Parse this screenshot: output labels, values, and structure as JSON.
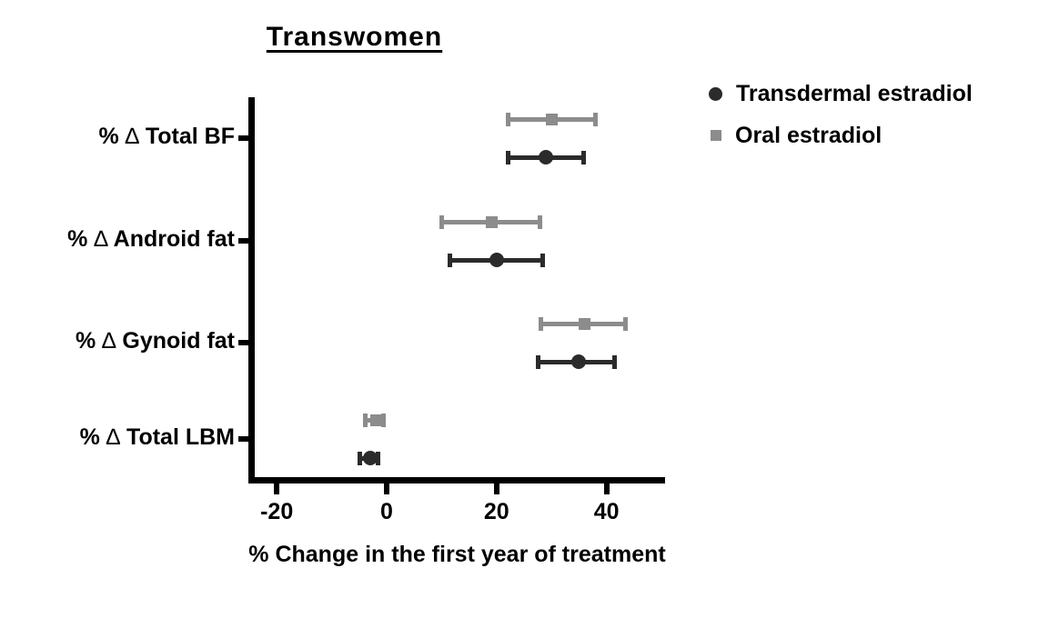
{
  "chart_data": {
    "type": "scatter",
    "title": "Transwomen",
    "xlabel": "% Change in the first year of treatment",
    "ylabel": "",
    "categories": [
      "% ∆ Total BF",
      "% ∆ Android fat",
      "% ∆ Gynoid fat",
      "% ∆ Total LBM"
    ],
    "x_ticks": [
      -20,
      0,
      20,
      40
    ],
    "xlim": [
      -25,
      50.5
    ],
    "grid": false,
    "legend_position": "top-right",
    "background": "#ffffff",
    "axis_color": "#000000",
    "text_color": "#000000",
    "series": [
      {
        "name": "Transdermal estradiol",
        "marker": "circle",
        "color": "#2b2b2b",
        "points": [
          {
            "category": "% ∆ Total BF",
            "value": 29,
            "low": 22,
            "high": 36
          },
          {
            "category": "% ∆ Android fat",
            "value": 20,
            "low": 11.5,
            "high": 28.5
          },
          {
            "category": "% ∆ Gynoid fat",
            "value": 35,
            "low": 27.5,
            "high": 41.5
          },
          {
            "category": "% ∆ Total LBM",
            "value": -3,
            "low": -5,
            "high": -1.5
          }
        ]
      },
      {
        "name": "Oral estradiol",
        "marker": "square",
        "color": "#8c8c8c",
        "points": [
          {
            "category": "% ∆ Total BF",
            "value": 30,
            "low": 22,
            "high": 38
          },
          {
            "category": "% ∆ Android fat",
            "value": 19,
            "low": 10,
            "high": 28
          },
          {
            "category": "% ∆ Gynoid fat",
            "value": 36,
            "low": 28,
            "high": 43.5
          },
          {
            "category": "% ∆ Total LBM",
            "value": -2,
            "low": -4,
            "high": -0.5
          }
        ]
      }
    ]
  }
}
